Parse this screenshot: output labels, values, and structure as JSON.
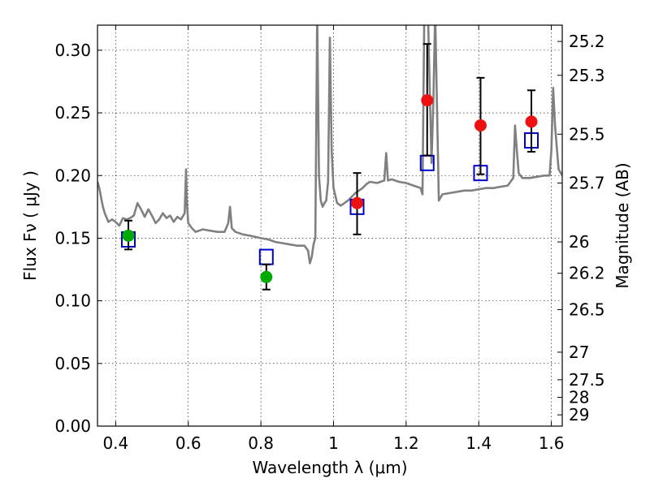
{
  "chart_data": {
    "type": "scatter",
    "xlabel": "Wavelength  λ (μm)",
    "ylabel": "Flux  Fν  ( μJy )",
    "ylabel_right": "Magnitude (AB)",
    "xlim": [
      0.35,
      1.63
    ],
    "ylim": [
      0.0,
      0.32
    ],
    "grid": true,
    "x_ticks": [
      0.4,
      0.6,
      0.8,
      1.0,
      1.2,
      1.4,
      1.6
    ],
    "x_tick_labels": [
      "0.4",
      "0.6",
      "0.8",
      "1",
      "1.2",
      "1.4",
      "1.6"
    ],
    "y_ticks": [
      0.0,
      0.05,
      0.1,
      0.15,
      0.2,
      0.25,
      0.3
    ],
    "y_tick_labels": [
      "0.00",
      "0.05",
      "0.10",
      "0.15",
      "0.20",
      "0.25",
      "0.30"
    ],
    "right_ticks": [
      {
        "label": "25.2",
        "flux": 0.307
      },
      {
        "label": "25.3",
        "flux": 0.28
      },
      {
        "label": "25.5",
        "flux": 0.233
      },
      {
        "label": "25.7",
        "flux": 0.194
      },
      {
        "label": "26",
        "flux": 0.147
      },
      {
        "label": "26.2",
        "flux": 0.122
      },
      {
        "label": "26.5",
        "flux": 0.093
      },
      {
        "label": "27",
        "flux": 0.059
      },
      {
        "label": "27.5",
        "flux": 0.037
      },
      {
        "label": "28",
        "flux": 0.023
      },
      {
        "label": "29",
        "flux": 0.009
      }
    ],
    "series": [
      {
        "kind": "line",
        "color": "#808080",
        "x": [
          0.35,
          0.355,
          0.36,
          0.365,
          0.37,
          0.38,
          0.39,
          0.4,
          0.41,
          0.42,
          0.43,
          0.44,
          0.45,
          0.46,
          0.47,
          0.48,
          0.49,
          0.5,
          0.51,
          0.52,
          0.53,
          0.54,
          0.55,
          0.56,
          0.57,
          0.58,
          0.59,
          0.594,
          0.596,
          0.6,
          0.61,
          0.62,
          0.64,
          0.66,
          0.68,
          0.7,
          0.71,
          0.715,
          0.72,
          0.73,
          0.75,
          0.77,
          0.8,
          0.82,
          0.84,
          0.86,
          0.88,
          0.9,
          0.92,
          0.93,
          0.935,
          0.94,
          0.945,
          0.95,
          0.955,
          0.96,
          0.965,
          0.97,
          0.975,
          0.98,
          0.985,
          0.99,
          0.995,
          1.0,
          1.01,
          1.02,
          1.03,
          1.04,
          1.05,
          1.06,
          1.07,
          1.08,
          1.09,
          1.1,
          1.12,
          1.14,
          1.145,
          1.15,
          1.16,
          1.18,
          1.2,
          1.22,
          1.23,
          1.24,
          1.245,
          1.25,
          1.26,
          1.27,
          1.275,
          1.28,
          1.29,
          1.3,
          1.32,
          1.34,
          1.36,
          1.38,
          1.4,
          1.42,
          1.44,
          1.46,
          1.48,
          1.495,
          1.5,
          1.505,
          1.51,
          1.52,
          1.54,
          1.56,
          1.58,
          1.595,
          1.6,
          1.605,
          1.61,
          1.62,
          1.63
        ],
        "y": [
          0.195,
          0.19,
          0.182,
          0.175,
          0.17,
          0.163,
          0.165,
          0.163,
          0.16,
          0.166,
          0.165,
          0.166,
          0.168,
          0.178,
          0.173,
          0.167,
          0.173,
          0.168,
          0.162,
          0.165,
          0.17,
          0.166,
          0.168,
          0.163,
          0.167,
          0.165,
          0.17,
          0.205,
          0.18,
          0.162,
          0.158,
          0.155,
          0.157,
          0.156,
          0.155,
          0.155,
          0.162,
          0.175,
          0.158,
          0.155,
          0.153,
          0.152,
          0.15,
          0.149,
          0.147,
          0.146,
          0.145,
          0.144,
          0.144,
          0.14,
          0.13,
          0.135,
          0.145,
          0.15,
          0.33,
          0.2,
          0.18,
          0.175,
          0.178,
          0.18,
          0.195,
          0.31,
          0.22,
          0.19,
          0.178,
          0.176,
          0.178,
          0.18,
          0.183,
          0.186,
          0.188,
          0.19,
          0.193,
          0.195,
          0.194,
          0.196,
          0.218,
          0.196,
          0.197,
          0.195,
          0.194,
          0.192,
          0.191,
          0.19,
          0.185,
          0.33,
          0.33,
          0.21,
          0.26,
          0.33,
          0.18,
          0.185,
          0.186,
          0.187,
          0.188,
          0.188,
          0.189,
          0.19,
          0.19,
          0.191,
          0.192,
          0.198,
          0.24,
          0.22,
          0.202,
          0.198,
          0.198,
          0.199,
          0.2,
          0.2,
          0.22,
          0.27,
          0.24,
          0.205,
          0.2
        ],
        "name": ""
      },
      {
        "kind": "points",
        "marker": "square",
        "color": "#0000cc",
        "x": [
          0.435,
          0.815,
          1.065,
          1.258,
          1.405,
          1.545
        ],
        "y": [
          0.149,
          0.135,
          0.175,
          0.21,
          0.202,
          0.228
        ],
        "name": ""
      },
      {
        "kind": "points",
        "marker": "circle",
        "color": "#00aa00",
        "x": [
          0.435,
          0.815
        ],
        "y": [
          0.152,
          0.119
        ],
        "yerr_low": [
          0.141,
          0.109
        ],
        "yerr_high": [
          0.164,
          0.129
        ],
        "name": ""
      },
      {
        "kind": "points",
        "marker": "circle",
        "color": "#ee1111",
        "x": [
          1.065,
          1.258,
          1.405,
          1.545
        ],
        "y": [
          0.178,
          0.26,
          0.24,
          0.243
        ],
        "yerr_low": [
          0.153,
          0.216,
          0.201,
          0.219
        ],
        "yerr_high": [
          0.202,
          0.305,
          0.278,
          0.268
        ],
        "name": ""
      }
    ]
  }
}
